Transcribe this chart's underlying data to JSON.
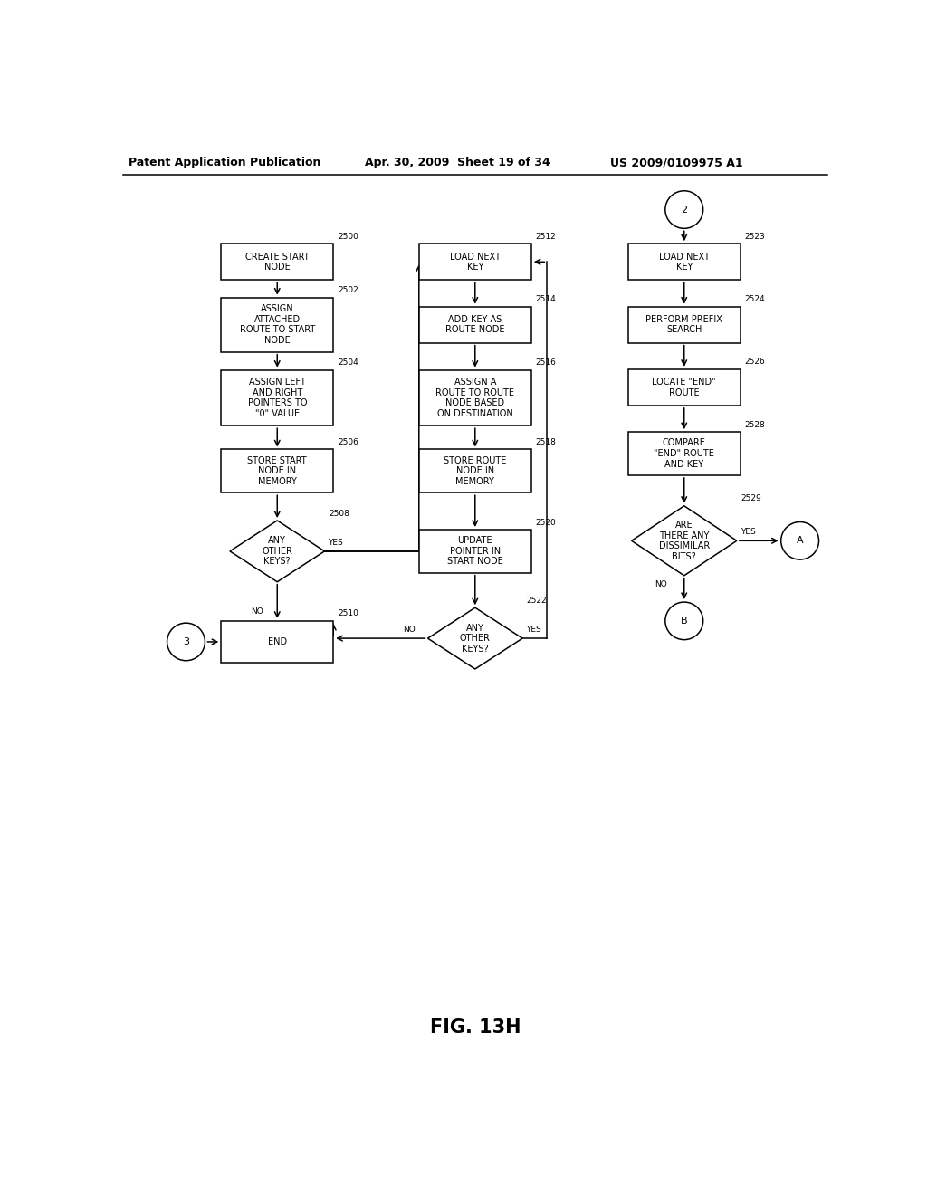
{
  "background_color": "#ffffff",
  "box_color": "#ffffff",
  "box_edge_color": "#000000",
  "fig_label": "FIG. 13H",
  "header_left": "Patent Application Publication",
  "header_mid": "Apr. 30, 2009  Sheet 19 of 34",
  "header_right": "US 2009/0109975 A1",
  "c1x": 2.3,
  "c2x": 5.12,
  "c3x": 8.1,
  "bw": 1.6,
  "dw": 1.35,
  "dh": 0.85,
  "lw": 1.1,
  "fs": 7.0,
  "fs_label": 6.5,
  "circ_r": 0.27
}
